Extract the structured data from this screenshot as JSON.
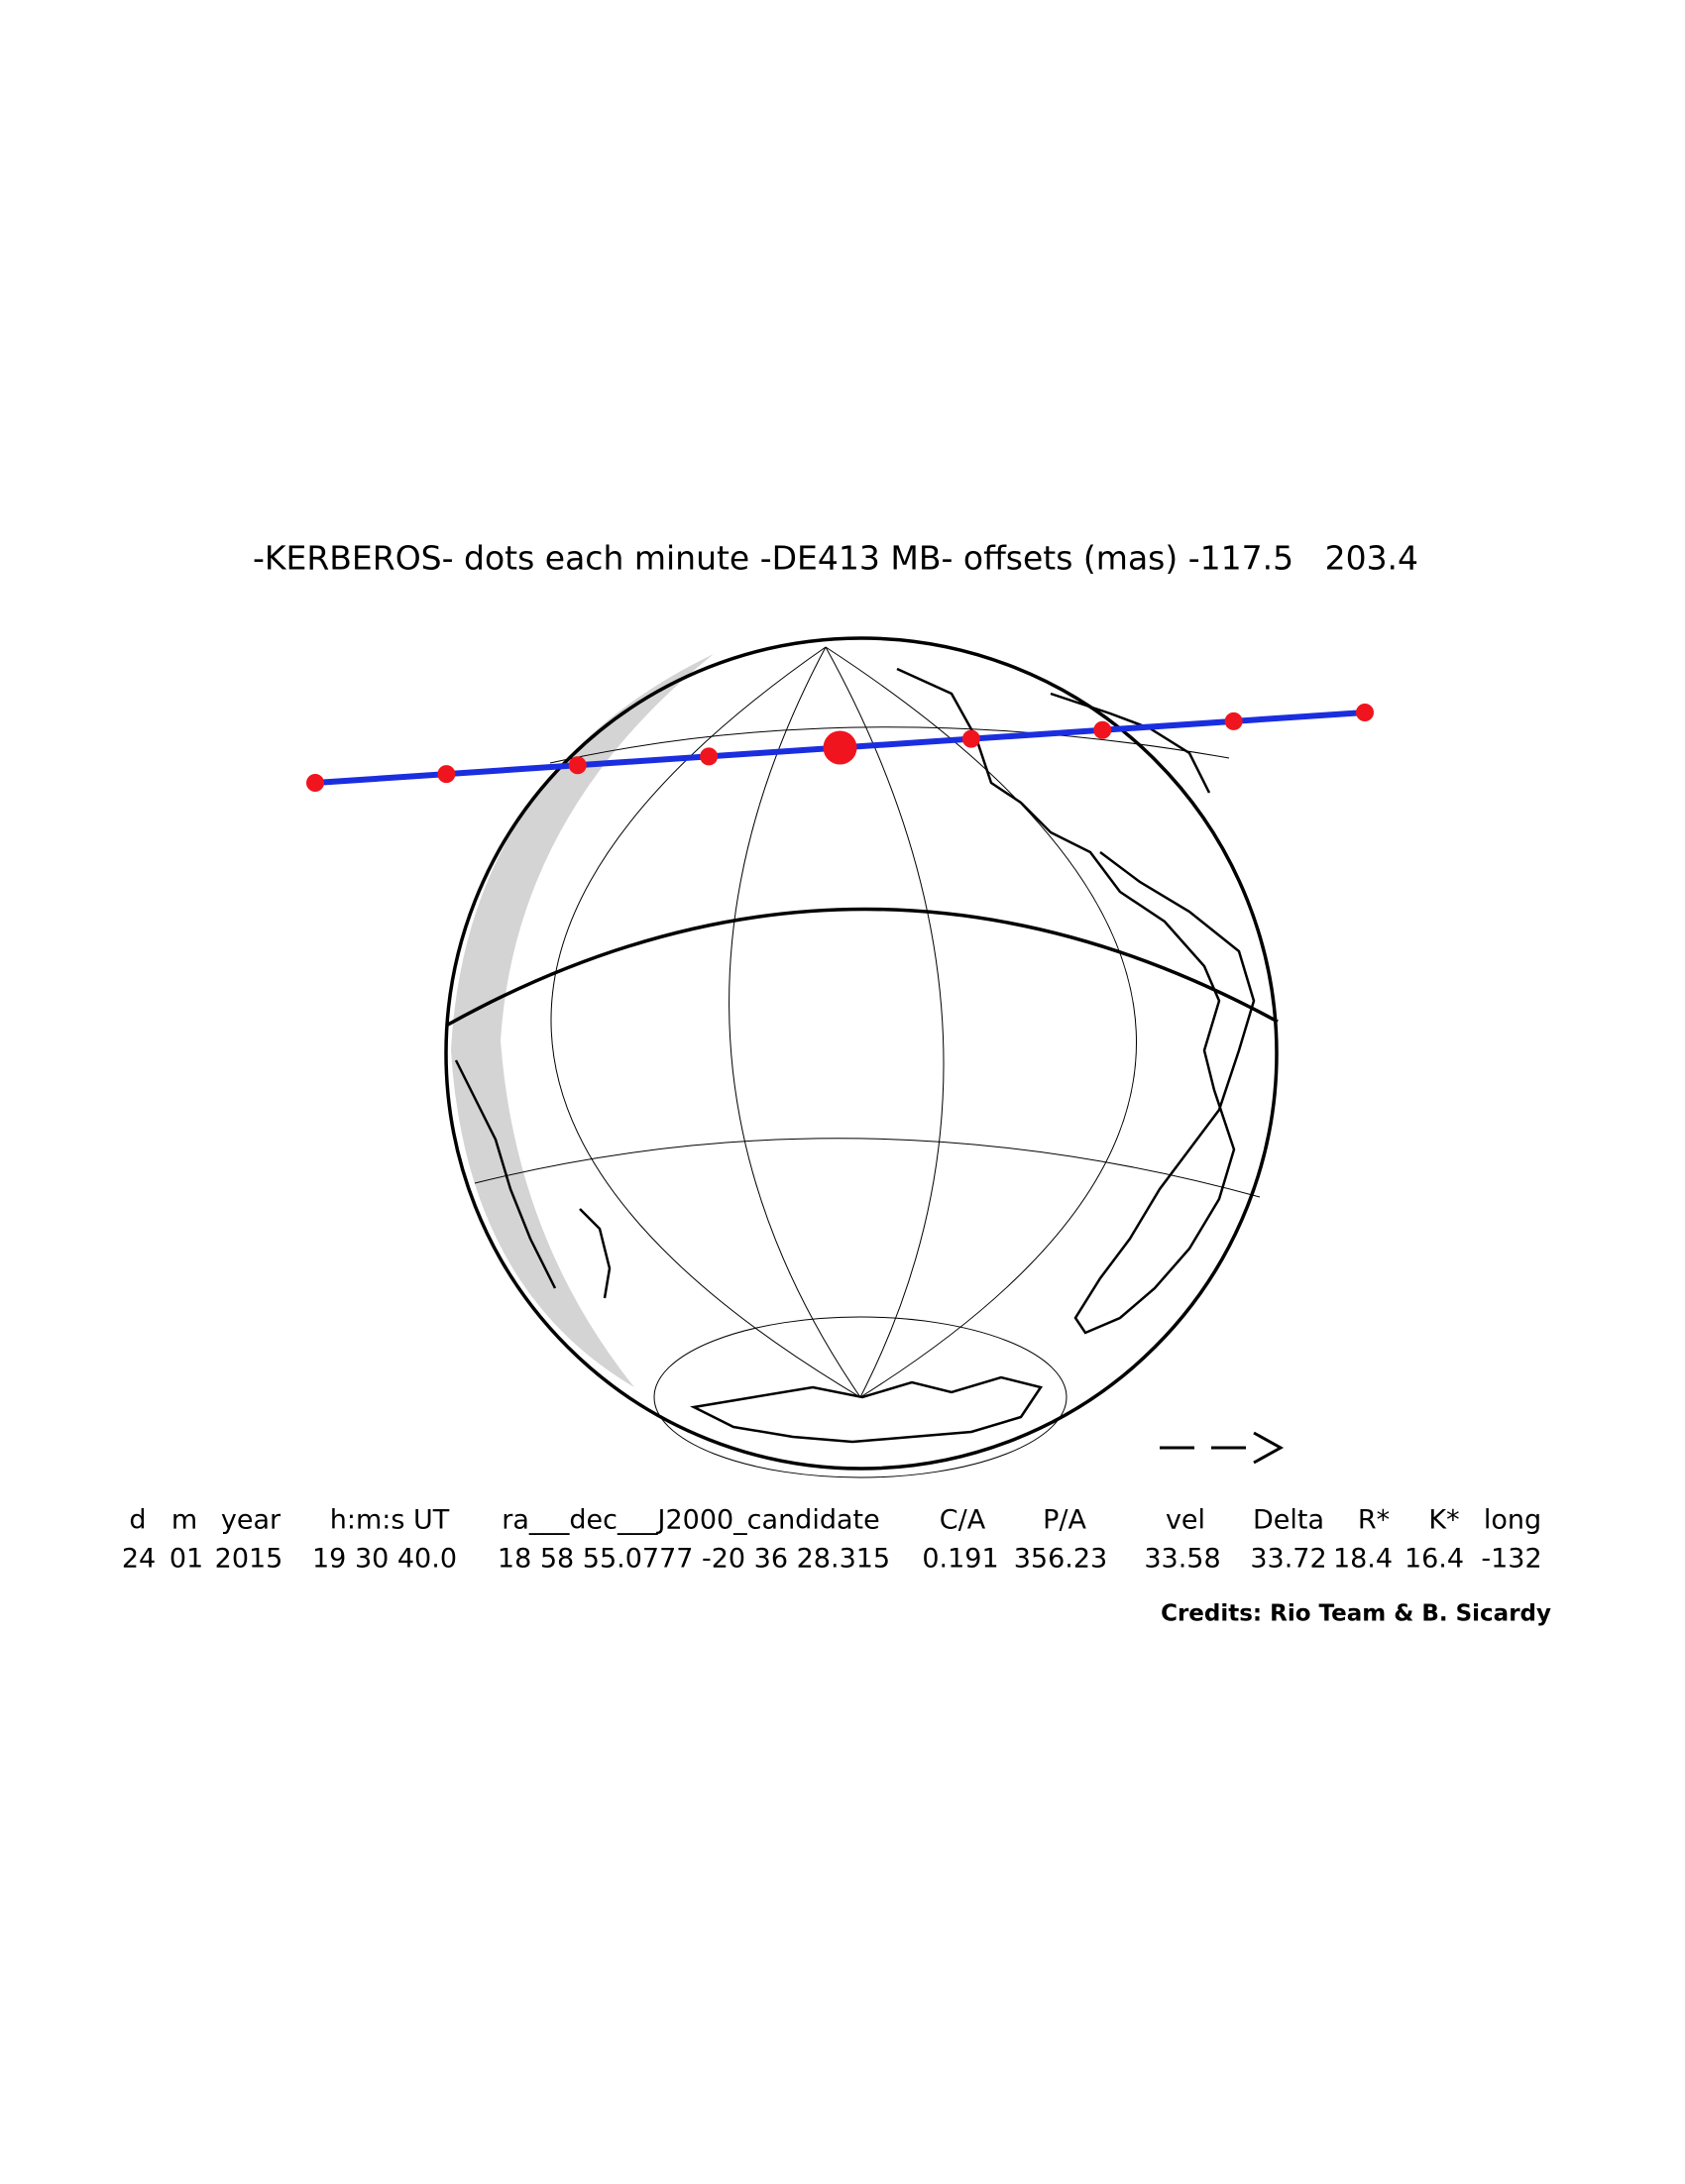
{
  "title": "-KERBEROS- dots each minute -DE413 MB- offsets (mas) -117.5   203.4",
  "table": {
    "header": [
      "d",
      "m",
      "year",
      "h:m:s UT",
      "ra___dec___J2000_candidate",
      "C/A",
      "P/A",
      "vel",
      "Delta",
      "R*",
      "K*",
      "long"
    ],
    "row": [
      "24",
      "01",
      "2015",
      "19 30 40.0",
      "18 58 55.0777 -20 36 28.315",
      "0.191",
      "356.23",
      "33.58",
      "33.72",
      "18.4",
      "16.4",
      "-132"
    ]
  },
  "credits": "Credits: Rio Team & B. Sicardy"
}
